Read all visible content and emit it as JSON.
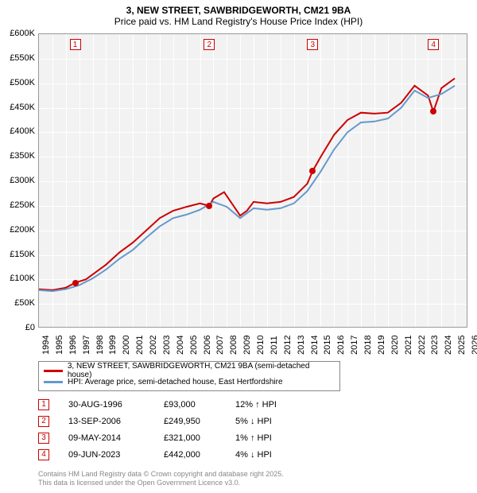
{
  "title": {
    "line1": "3, NEW STREET, SAWBRIDGEWORTH, CM21 9BA",
    "line2": "Price paid vs. HM Land Registry's House Price Index (HPI)"
  },
  "chart": {
    "type": "line",
    "background_color": "#f2f2f2",
    "grid_color": "#ffffff",
    "border_color": "#999999",
    "y_axis": {
      "min": 0,
      "max": 600000,
      "step": 50000,
      "labels": [
        "£0",
        "£50K",
        "£100K",
        "£150K",
        "£200K",
        "£250K",
        "£300K",
        "£350K",
        "£400K",
        "£450K",
        "£500K",
        "£550K",
        "£600K"
      ],
      "fontsize": 11
    },
    "x_axis": {
      "min": 1994,
      "max": 2026,
      "step": 1,
      "labels": [
        "1994",
        "1995",
        "1996",
        "1997",
        "1998",
        "1999",
        "2000",
        "2001",
        "2002",
        "2003",
        "2004",
        "2005",
        "2006",
        "2007",
        "2008",
        "2009",
        "2010",
        "2011",
        "2012",
        "2013",
        "2014",
        "2015",
        "2016",
        "2017",
        "2018",
        "2019",
        "2020",
        "2021",
        "2022",
        "2023",
        "2024",
        "2025",
        "2026"
      ],
      "fontsize": 11,
      "rotation": -90
    },
    "series": [
      {
        "name": "price_paid",
        "color": "#cc0000",
        "line_width": 2,
        "points": [
          [
            1994.0,
            80000
          ],
          [
            1995.0,
            78000
          ],
          [
            1996.0,
            83000
          ],
          [
            1996.7,
            93000
          ],
          [
            1997.5,
            100000
          ],
          [
            1998.0,
            110000
          ],
          [
            1999.0,
            130000
          ],
          [
            2000.0,
            155000
          ],
          [
            2001.0,
            175000
          ],
          [
            2002.0,
            200000
          ],
          [
            2003.0,
            225000
          ],
          [
            2004.0,
            240000
          ],
          [
            2005.0,
            248000
          ],
          [
            2006.0,
            255000
          ],
          [
            2006.7,
            249950
          ],
          [
            2007.0,
            265000
          ],
          [
            2007.8,
            278000
          ],
          [
            2008.5,
            250000
          ],
          [
            2009.0,
            230000
          ],
          [
            2009.5,
            240000
          ],
          [
            2010.0,
            258000
          ],
          [
            2011.0,
            255000
          ],
          [
            2012.0,
            258000
          ],
          [
            2013.0,
            268000
          ],
          [
            2014.0,
            295000
          ],
          [
            2014.4,
            321000
          ],
          [
            2015.0,
            350000
          ],
          [
            2016.0,
            395000
          ],
          [
            2017.0,
            425000
          ],
          [
            2018.0,
            440000
          ],
          [
            2019.0,
            438000
          ],
          [
            2020.0,
            440000
          ],
          [
            2021.0,
            460000
          ],
          [
            2022.0,
            495000
          ],
          [
            2023.0,
            475000
          ],
          [
            2023.4,
            442000
          ],
          [
            2024.0,
            490000
          ],
          [
            2025.0,
            510000
          ]
        ]
      },
      {
        "name": "hpi",
        "color": "#6699cc",
        "line_width": 2,
        "points": [
          [
            1994.0,
            78000
          ],
          [
            1995.0,
            76000
          ],
          [
            1996.0,
            80000
          ],
          [
            1997.0,
            88000
          ],
          [
            1998.0,
            102000
          ],
          [
            1999.0,
            120000
          ],
          [
            2000.0,
            142000
          ],
          [
            2001.0,
            160000
          ],
          [
            2002.0,
            185000
          ],
          [
            2003.0,
            208000
          ],
          [
            2004.0,
            225000
          ],
          [
            2005.0,
            232000
          ],
          [
            2006.0,
            242000
          ],
          [
            2007.0,
            258000
          ],
          [
            2008.0,
            248000
          ],
          [
            2009.0,
            225000
          ],
          [
            2010.0,
            245000
          ],
          [
            2011.0,
            242000
          ],
          [
            2012.0,
            245000
          ],
          [
            2013.0,
            255000
          ],
          [
            2014.0,
            280000
          ],
          [
            2015.0,
            320000
          ],
          [
            2016.0,
            365000
          ],
          [
            2017.0,
            400000
          ],
          [
            2018.0,
            420000
          ],
          [
            2019.0,
            422000
          ],
          [
            2020.0,
            428000
          ],
          [
            2021.0,
            450000
          ],
          [
            2022.0,
            485000
          ],
          [
            2023.0,
            470000
          ],
          [
            2024.0,
            478000
          ],
          [
            2025.0,
            495000
          ]
        ]
      }
    ],
    "markers": [
      {
        "n": "1",
        "year": 1996.7,
        "value": 93000,
        "color": "#cc0000"
      },
      {
        "n": "2",
        "year": 2006.7,
        "value": 249950,
        "color": "#cc0000"
      },
      {
        "n": "3",
        "year": 2014.4,
        "value": 321000,
        "color": "#cc0000"
      },
      {
        "n": "4",
        "year": 2023.4,
        "value": 442000,
        "color": "#cc0000"
      }
    ]
  },
  "legend": {
    "items": [
      {
        "color": "#cc0000",
        "label": "3, NEW STREET, SAWBRIDGEWORTH, CM21 9BA (semi-detached house)"
      },
      {
        "color": "#6699cc",
        "label": "HPI: Average price, semi-detached house, East Hertfordshire"
      }
    ]
  },
  "marker_table": [
    {
      "n": "1",
      "color": "#cc0000",
      "date": "30-AUG-1996",
      "price": "£93,000",
      "diff": "12% ↑ HPI"
    },
    {
      "n": "2",
      "color": "#cc0000",
      "date": "13-SEP-2006",
      "price": "£249,950",
      "diff": "5% ↓ HPI"
    },
    {
      "n": "3",
      "color": "#cc0000",
      "date": "09-MAY-2014",
      "price": "£321,000",
      "diff": "1% ↑ HPI"
    },
    {
      "n": "4",
      "color": "#cc0000",
      "date": "09-JUN-2023",
      "price": "£442,000",
      "diff": "4% ↓ HPI"
    }
  ],
  "footer": {
    "line1": "Contains HM Land Registry data © Crown copyright and database right 2025.",
    "line2": "This data is licensed under the Open Government Licence v3.0."
  }
}
